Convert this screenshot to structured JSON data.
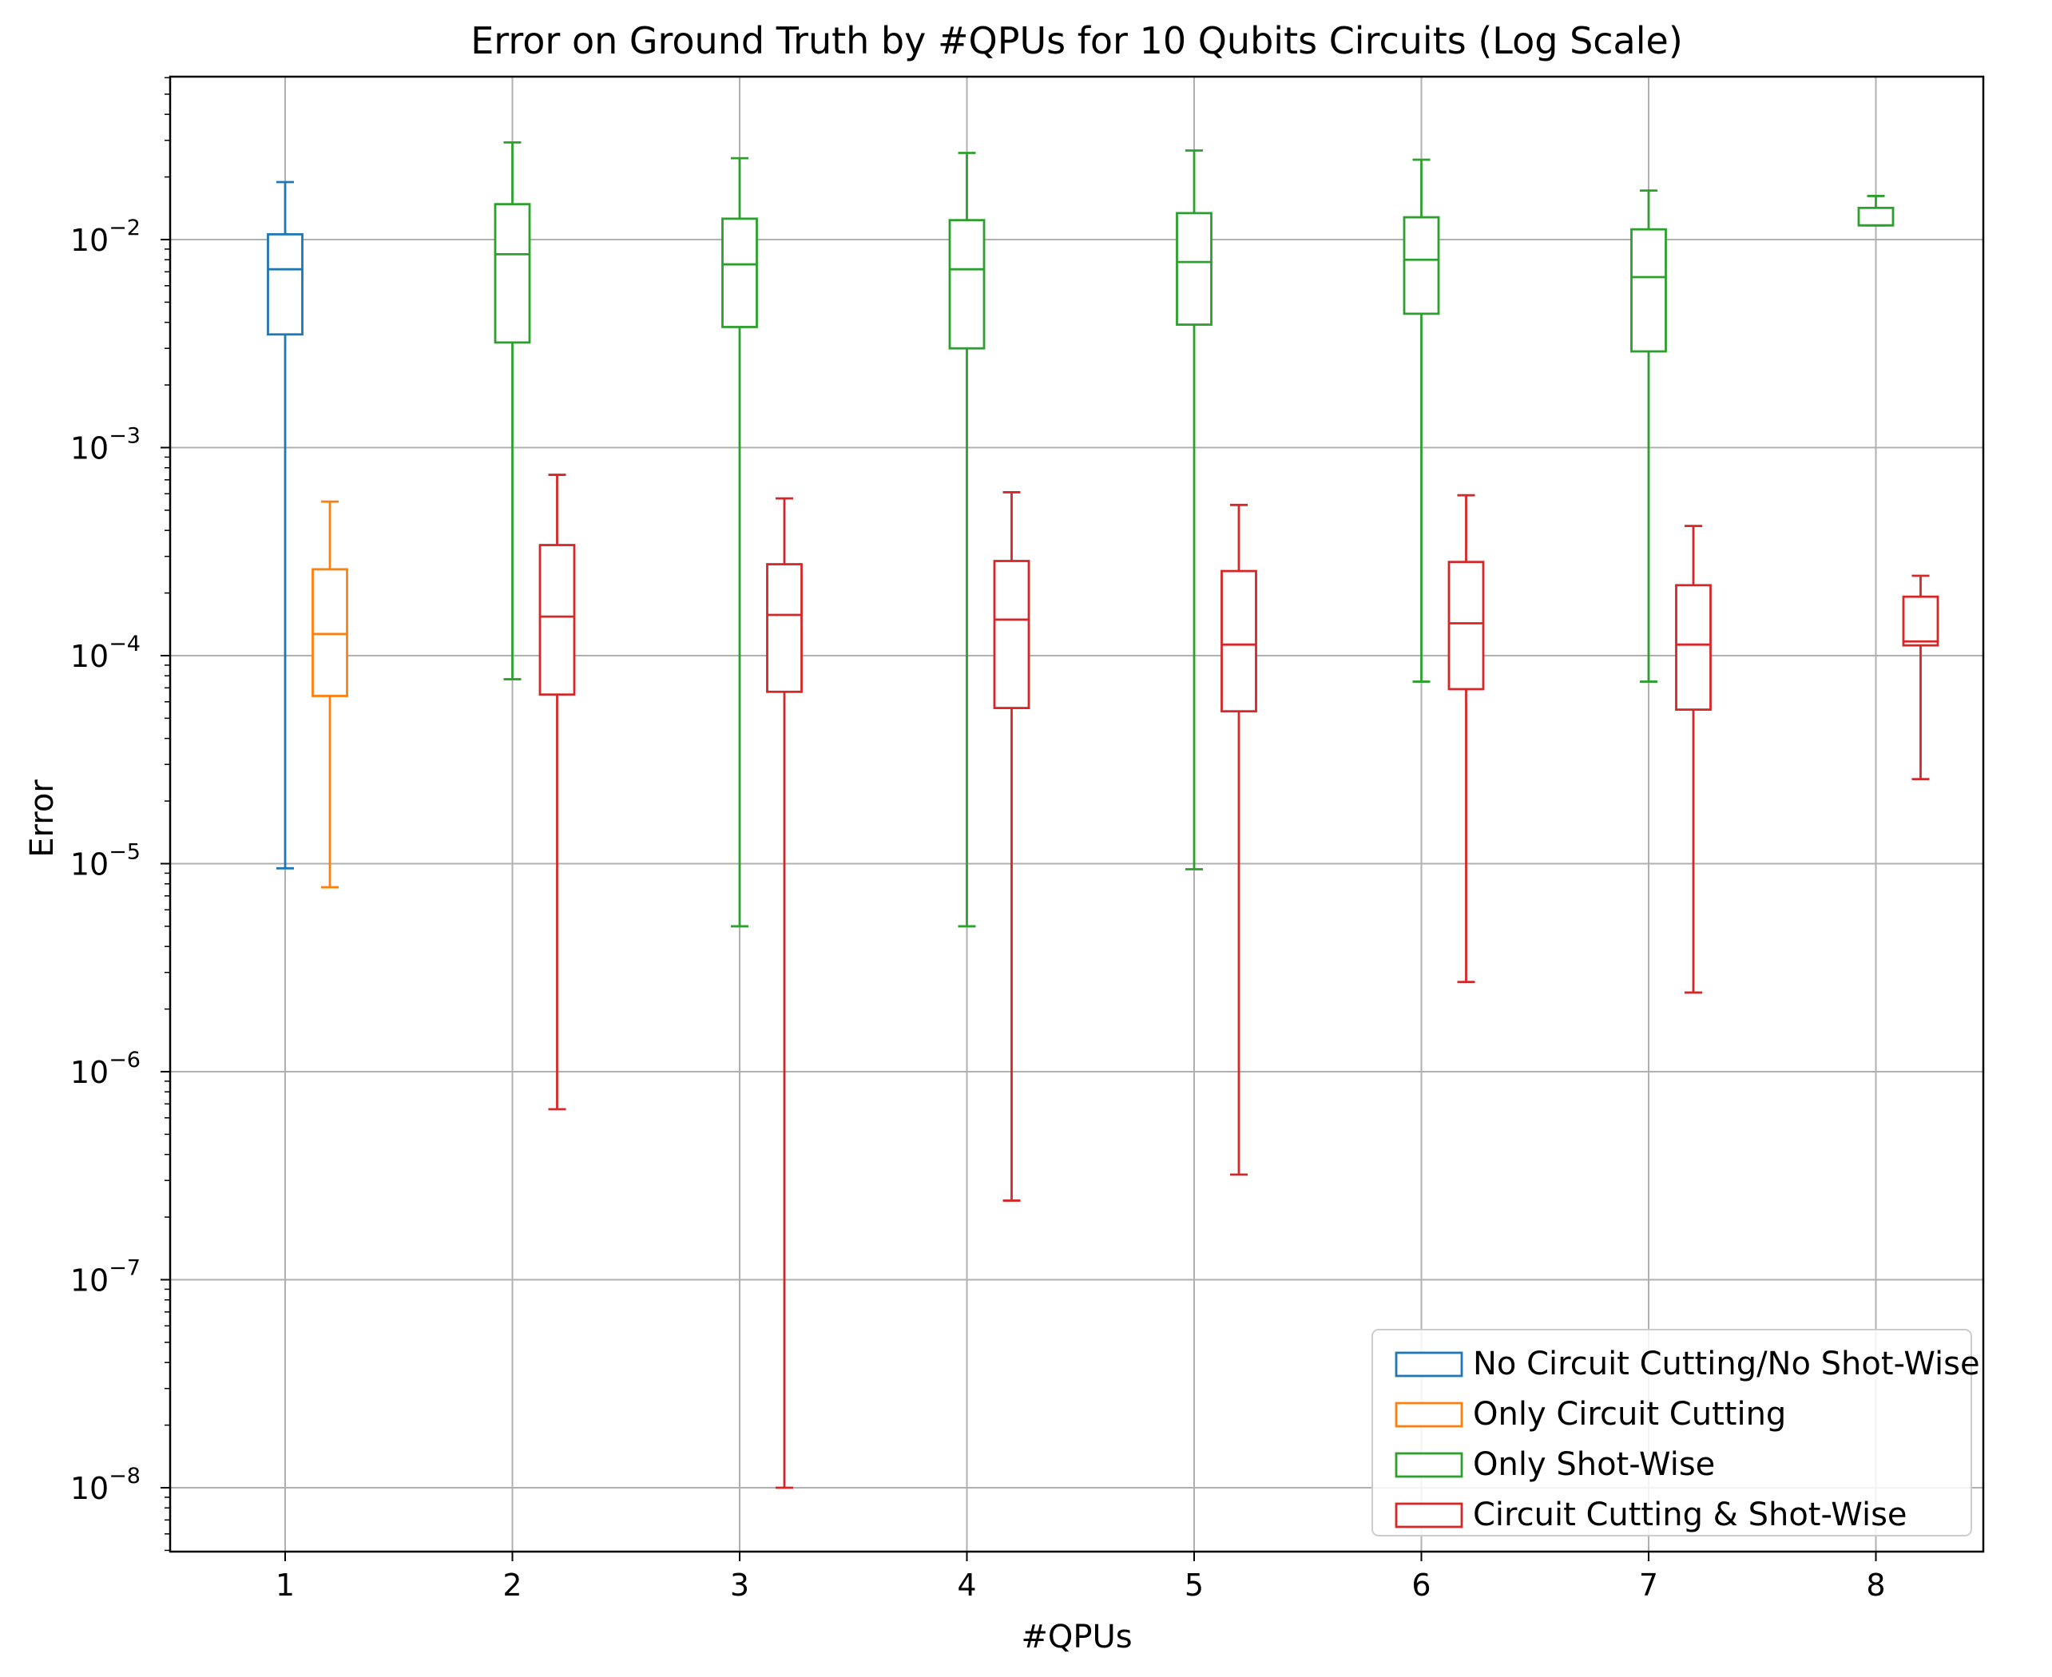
{
  "chart_data": {
    "type": "box",
    "title": "Error on Ground Truth by #QPUs for 10 Qubits Circuits (Log Scale)",
    "xlabel": "#QPUs",
    "ylabel": "Error",
    "y_scale": "log",
    "ylim": [
      5e-09,
      0.06
    ],
    "grid": true,
    "legend_position": "lower-right",
    "categories": [
      "1",
      "2",
      "3",
      "4",
      "5",
      "6",
      "7",
      "8"
    ],
    "y_ticks": [
      {
        "value": 1e-08,
        "base": "10",
        "exp": "−8"
      },
      {
        "value": 1e-07,
        "base": "10",
        "exp": "−7"
      },
      {
        "value": 1e-06,
        "base": "10",
        "exp": "−6"
      },
      {
        "value": 1e-05,
        "base": "10",
        "exp": "−5"
      },
      {
        "value": 0.0001,
        "base": "10",
        "exp": "−4"
      },
      {
        "value": 0.001,
        "base": "10",
        "exp": "−3"
      },
      {
        "value": 0.01,
        "base": "10",
        "exp": "−2"
      }
    ],
    "series": [
      {
        "name": "No Circuit Cutting/No Shot-Wise",
        "color": "#1f77b4",
        "boxes": [
          {
            "category": "1",
            "whislo": 9.5e-06,
            "q1": 0.0035,
            "median": 0.0072,
            "q3": 0.0106,
            "whishi": 0.0189
          }
        ]
      },
      {
        "name": "Only Circuit Cutting",
        "color": "#ff7f0e",
        "boxes": [
          {
            "category": "1",
            "whislo": 7.7e-06,
            "q1": 6.4e-05,
            "median": 0.000127,
            "q3": 0.00026,
            "whishi": 0.00055
          }
        ]
      },
      {
        "name": "Only Shot-Wise",
        "color": "#2ca02c",
        "boxes": [
          {
            "category": "2",
            "whislo": 7.7e-05,
            "q1": 0.0032,
            "median": 0.0085,
            "q3": 0.0148,
            "whishi": 0.0293
          },
          {
            "category": "3",
            "whislo": 5e-06,
            "q1": 0.0038,
            "median": 0.0076,
            "q3": 0.0126,
            "whishi": 0.0246
          },
          {
            "category": "4",
            "whislo": 5e-06,
            "q1": 0.003,
            "median": 0.0072,
            "q3": 0.0124,
            "whishi": 0.0261
          },
          {
            "category": "5",
            "whislo": 9.4e-06,
            "q1": 0.0039,
            "median": 0.0078,
            "q3": 0.0134,
            "whishi": 0.0268
          },
          {
            "category": "6",
            "whislo": 7.5e-05,
            "q1": 0.0044,
            "median": 0.008,
            "q3": 0.0128,
            "whishi": 0.0242
          },
          {
            "category": "7",
            "whislo": 7.5e-05,
            "q1": 0.0029,
            "median": 0.0066,
            "q3": 0.0112,
            "whishi": 0.0172
          },
          {
            "category": "8",
            "whislo": 0.0117,
            "q1": 0.0117,
            "median": 0.0117,
            "q3": 0.0142,
            "whishi": 0.0162
          }
        ]
      },
      {
        "name": "Circuit Cutting & Shot-Wise",
        "color": "#d62728",
        "boxes": [
          {
            "category": "2",
            "whislo": 6.6e-07,
            "q1": 6.5e-05,
            "median": 0.000154,
            "q3": 0.00034,
            "whishi": 0.00074
          },
          {
            "category": "3",
            "whislo": 1e-08,
            "q1": 6.7e-05,
            "median": 0.000157,
            "q3": 0.000275,
            "whishi": 0.00057
          },
          {
            "category": "4",
            "whislo": 2.4e-07,
            "q1": 5.6e-05,
            "median": 0.000149,
            "q3": 0.000285,
            "whishi": 0.00061
          },
          {
            "category": "5",
            "whislo": 3.2e-07,
            "q1": 5.4e-05,
            "median": 0.000113,
            "q3": 0.000255,
            "whishi": 0.00053
          },
          {
            "category": "6",
            "whislo": 2.7e-06,
            "q1": 6.9e-05,
            "median": 0.000143,
            "q3": 0.000282,
            "whishi": 0.00059
          },
          {
            "category": "7",
            "whislo": 2.4e-06,
            "q1": 5.5e-05,
            "median": 0.000113,
            "q3": 0.000218,
            "whishi": 0.00042
          },
          {
            "category": "8",
            "whislo": 2.55e-05,
            "q1": 0.000112,
            "median": 0.000117,
            "q3": 0.000192,
            "whishi": 0.000242
          }
        ]
      }
    ]
  }
}
